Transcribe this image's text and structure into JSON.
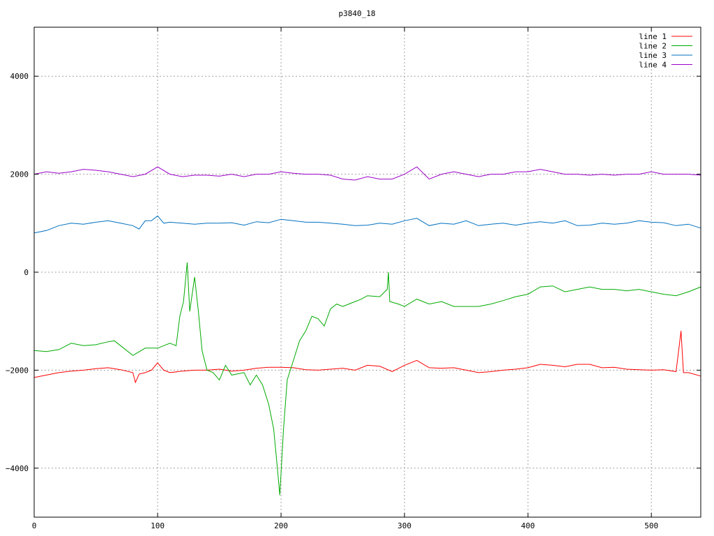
{
  "chart_data": {
    "type": "line",
    "title": "p3840_18",
    "xlabel": "",
    "ylabel": "",
    "xlim": [
      0,
      540
    ],
    "ylim": [
      -5000,
      5000
    ],
    "x_ticks": [
      "0",
      "100",
      "200",
      "300",
      "400",
      "500"
    ],
    "y_ticks": [
      "-4000",
      "-2000",
      "0",
      "2000",
      "4000"
    ],
    "grid": true,
    "legend_position": "top-right",
    "series": [
      {
        "name": "line 1",
        "color": "#ff0000",
        "points": [
          [
            0,
            -2150
          ],
          [
            10,
            -2100
          ],
          [
            20,
            -2050
          ],
          [
            30,
            -2020
          ],
          [
            40,
            -2000
          ],
          [
            50,
            -1970
          ],
          [
            60,
            -1950
          ],
          [
            70,
            -1990
          ],
          [
            80,
            -2050
          ],
          [
            82,
            -2250
          ],
          [
            85,
            -2080
          ],
          [
            90,
            -2050
          ],
          [
            95,
            -2000
          ],
          [
            100,
            -1850
          ],
          [
            105,
            -2000
          ],
          [
            110,
            -2050
          ],
          [
            120,
            -2020
          ],
          [
            130,
            -2000
          ],
          [
            140,
            -2000
          ],
          [
            150,
            -1980
          ],
          [
            160,
            -2020
          ],
          [
            170,
            -2000
          ],
          [
            180,
            -1960
          ],
          [
            190,
            -1940
          ],
          [
            200,
            -1940
          ],
          [
            210,
            -1950
          ],
          [
            220,
            -1990
          ],
          [
            230,
            -2000
          ],
          [
            240,
            -1980
          ],
          [
            250,
            -1960
          ],
          [
            260,
            -2000
          ],
          [
            270,
            -1900
          ],
          [
            280,
            -1920
          ],
          [
            290,
            -2030
          ],
          [
            300,
            -1900
          ],
          [
            310,
            -1800
          ],
          [
            320,
            -1950
          ],
          [
            330,
            -1960
          ],
          [
            340,
            -1950
          ],
          [
            350,
            -2000
          ],
          [
            360,
            -2050
          ],
          [
            370,
            -2030
          ],
          [
            380,
            -2000
          ],
          [
            390,
            -1980
          ],
          [
            400,
            -1950
          ],
          [
            410,
            -1880
          ],
          [
            420,
            -1900
          ],
          [
            430,
            -1930
          ],
          [
            440,
            -1880
          ],
          [
            450,
            -1880
          ],
          [
            460,
            -1950
          ],
          [
            470,
            -1940
          ],
          [
            480,
            -1980
          ],
          [
            490,
            -1990
          ],
          [
            500,
            -2000
          ],
          [
            510,
            -1990
          ],
          [
            520,
            -2030
          ],
          [
            524,
            -1200
          ],
          [
            526,
            -2050
          ],
          [
            530,
            -2050
          ],
          [
            540,
            -2120
          ]
        ]
      },
      {
        "name": "line 2",
        "color": "#00aa00",
        "points": [
          [
            0,
            -1600
          ],
          [
            10,
            -1620
          ],
          [
            20,
            -1580
          ],
          [
            30,
            -1450
          ],
          [
            40,
            -1500
          ],
          [
            50,
            -1480
          ],
          [
            60,
            -1420
          ],
          [
            65,
            -1400
          ],
          [
            70,
            -1500
          ],
          [
            80,
            -1700
          ],
          [
            90,
            -1550
          ],
          [
            100,
            -1550
          ],
          [
            110,
            -1450
          ],
          [
            115,
            -1500
          ],
          [
            118,
            -900
          ],
          [
            121,
            -600
          ],
          [
            124,
            200
          ],
          [
            126,
            -800
          ],
          [
            130,
            -100
          ],
          [
            133,
            -800
          ],
          [
            136,
            -1600
          ],
          [
            140,
            -2000
          ],
          [
            145,
            -2050
          ],
          [
            150,
            -2200
          ],
          [
            155,
            -1900
          ],
          [
            160,
            -2100
          ],
          [
            170,
            -2050
          ],
          [
            175,
            -2300
          ],
          [
            180,
            -2100
          ],
          [
            185,
            -2300
          ],
          [
            190,
            -2700
          ],
          [
            194,
            -3200
          ],
          [
            197,
            -4000
          ],
          [
            199,
            -4550
          ],
          [
            202,
            -3200
          ],
          [
            205,
            -2200
          ],
          [
            210,
            -1800
          ],
          [
            215,
            -1400
          ],
          [
            220,
            -1200
          ],
          [
            225,
            -900
          ],
          [
            230,
            -950
          ],
          [
            235,
            -1100
          ],
          [
            240,
            -750
          ],
          [
            245,
            -650
          ],
          [
            250,
            -700
          ],
          [
            255,
            -650
          ],
          [
            260,
            -600
          ],
          [
            265,
            -550
          ],
          [
            270,
            -480
          ],
          [
            280,
            -500
          ],
          [
            286,
            -350
          ],
          [
            287,
            0
          ],
          [
            288,
            -600
          ],
          [
            295,
            -650
          ],
          [
            300,
            -700
          ],
          [
            310,
            -550
          ],
          [
            320,
            -650
          ],
          [
            330,
            -600
          ],
          [
            340,
            -700
          ],
          [
            350,
            -700
          ],
          [
            360,
            -700
          ],
          [
            370,
            -650
          ],
          [
            380,
            -580
          ],
          [
            390,
            -500
          ],
          [
            400,
            -450
          ],
          [
            410,
            -300
          ],
          [
            420,
            -280
          ],
          [
            430,
            -400
          ],
          [
            440,
            -350
          ],
          [
            450,
            -300
          ],
          [
            460,
            -350
          ],
          [
            470,
            -350
          ],
          [
            480,
            -380
          ],
          [
            490,
            -350
          ],
          [
            500,
            -400
          ],
          [
            510,
            -450
          ],
          [
            520,
            -480
          ],
          [
            530,
            -400
          ],
          [
            540,
            -300
          ]
        ]
      },
      {
        "name": "line 3",
        "color": "#0070c0",
        "points": [
          [
            0,
            800
          ],
          [
            10,
            850
          ],
          [
            20,
            950
          ],
          [
            30,
            1000
          ],
          [
            40,
            980
          ],
          [
            50,
            1020
          ],
          [
            60,
            1050
          ],
          [
            70,
            1000
          ],
          [
            80,
            950
          ],
          [
            85,
            880
          ],
          [
            90,
            1050
          ],
          [
            95,
            1050
          ],
          [
            100,
            1150
          ],
          [
            105,
            1000
          ],
          [
            110,
            1020
          ],
          [
            120,
            1000
          ],
          [
            130,
            980
          ],
          [
            140,
            1000
          ],
          [
            150,
            1000
          ],
          [
            160,
            1010
          ],
          [
            170,
            960
          ],
          [
            180,
            1030
          ],
          [
            190,
            1010
          ],
          [
            200,
            1080
          ],
          [
            210,
            1050
          ],
          [
            220,
            1020
          ],
          [
            230,
            1020
          ],
          [
            240,
            1000
          ],
          [
            250,
            980
          ],
          [
            260,
            950
          ],
          [
            270,
            960
          ],
          [
            280,
            1000
          ],
          [
            290,
            980
          ],
          [
            300,
            1050
          ],
          [
            310,
            1100
          ],
          [
            320,
            950
          ],
          [
            330,
            1000
          ],
          [
            340,
            980
          ],
          [
            350,
            1050
          ],
          [
            360,
            950
          ],
          [
            370,
            980
          ],
          [
            380,
            1000
          ],
          [
            390,
            960
          ],
          [
            400,
            1000
          ],
          [
            410,
            1030
          ],
          [
            420,
            1000
          ],
          [
            430,
            1050
          ],
          [
            440,
            950
          ],
          [
            450,
            960
          ],
          [
            460,
            1000
          ],
          [
            470,
            980
          ],
          [
            480,
            1000
          ],
          [
            490,
            1050
          ],
          [
            500,
            1020
          ],
          [
            510,
            1010
          ],
          [
            520,
            950
          ],
          [
            530,
            980
          ],
          [
            540,
            900
          ]
        ]
      },
      {
        "name": "line 4",
        "color": "#9b00c8",
        "points": [
          [
            0,
            2000
          ],
          [
            10,
            2050
          ],
          [
            20,
            2020
          ],
          [
            30,
            2050
          ],
          [
            40,
            2100
          ],
          [
            50,
            2080
          ],
          [
            60,
            2050
          ],
          [
            70,
            2000
          ],
          [
            80,
            1950
          ],
          [
            90,
            2000
          ],
          [
            100,
            2150
          ],
          [
            110,
            2000
          ],
          [
            120,
            1950
          ],
          [
            130,
            1980
          ],
          [
            140,
            1980
          ],
          [
            150,
            1960
          ],
          [
            160,
            2000
          ],
          [
            170,
            1950
          ],
          [
            180,
            2000
          ],
          [
            190,
            2000
          ],
          [
            200,
            2050
          ],
          [
            210,
            2020
          ],
          [
            220,
            2000
          ],
          [
            230,
            2000
          ],
          [
            240,
            1980
          ],
          [
            250,
            1900
          ],
          [
            260,
            1880
          ],
          [
            270,
            1950
          ],
          [
            280,
            1900
          ],
          [
            290,
            1900
          ],
          [
            300,
            2000
          ],
          [
            310,
            2150
          ],
          [
            320,
            1900
          ],
          [
            330,
            2000
          ],
          [
            340,
            2050
          ],
          [
            350,
            2000
          ],
          [
            360,
            1950
          ],
          [
            370,
            2000
          ],
          [
            380,
            2000
          ],
          [
            390,
            2050
          ],
          [
            400,
            2050
          ],
          [
            410,
            2100
          ],
          [
            420,
            2050
          ],
          [
            430,
            2000
          ],
          [
            440,
            2000
          ],
          [
            450,
            1980
          ],
          [
            460,
            2000
          ],
          [
            470,
            1980
          ],
          [
            480,
            2000
          ],
          [
            490,
            2000
          ],
          [
            500,
            2050
          ],
          [
            510,
            2000
          ],
          [
            520,
            2000
          ],
          [
            530,
            2000
          ],
          [
            540,
            1980
          ]
        ]
      }
    ]
  }
}
